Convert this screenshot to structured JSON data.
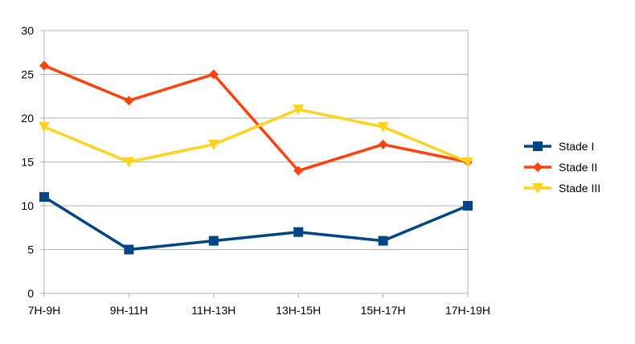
{
  "chart_data": {
    "type": "line",
    "title": "",
    "xlabel": "",
    "ylabel": "",
    "categories": [
      "7H-9H",
      "9H-11H",
      "11H-13H",
      "13H-15H",
      "15H-17H",
      "17H-19H"
    ],
    "ylim": [
      0,
      30
    ],
    "yticks": [
      0,
      5,
      10,
      15,
      20,
      25,
      30
    ],
    "grid": true,
    "legend_position": "right",
    "series": [
      {
        "name": "Stade I",
        "values": [
          11,
          5,
          6,
          7,
          6,
          10
        ],
        "color": "#004586",
        "marker": "square"
      },
      {
        "name": "Stade II",
        "values": [
          26,
          22,
          25,
          14,
          17,
          15
        ],
        "color": "#ff420e",
        "marker": "diamond"
      },
      {
        "name": "Stade III",
        "values": [
          19,
          15,
          17,
          21,
          19,
          15
        ],
        "color": "#ffd320",
        "marker": "triangle-down"
      }
    ]
  }
}
